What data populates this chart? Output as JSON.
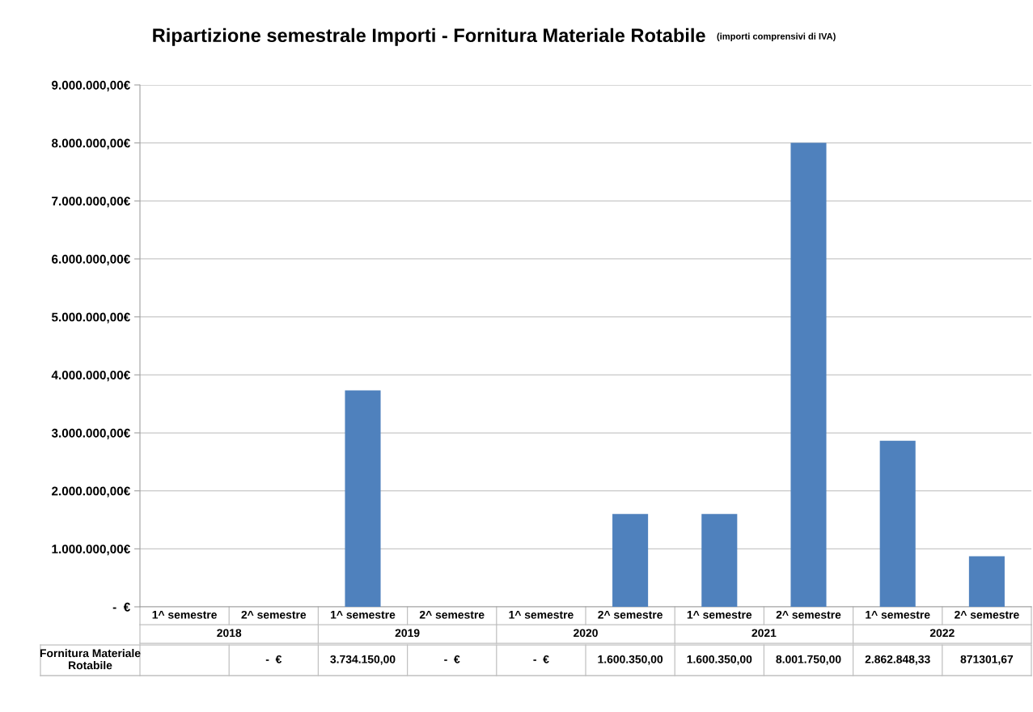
{
  "chart_data": {
    "type": "bar",
    "title": "Ripartizione semestrale Importi - Fornitura Materiale Rotabile",
    "subtitle": "(importi comprensivi di IVA)",
    "categories": [
      "1^ semestre",
      "2^ semestre",
      "1^ semestre",
      "2^ semestre",
      "1^ semestre",
      "2^ semestre",
      "1^ semestre",
      "2^ semestre",
      "1^ semestre",
      "2^ semestre"
    ],
    "annotations": [
      "2018",
      "2019",
      "2020",
      "2021",
      "2022"
    ],
    "series": [
      {
        "name": "Fornitura Materiale Rotabile",
        "color": "#4f81bd",
        "values": [
          null,
          0,
          3734150.0,
          0,
          0,
          1600350.0,
          1600350.0,
          8001750.0,
          2862848.33,
          871301.67
        ],
        "value_labels": [
          null,
          "-  €",
          "3.734.150,00",
          "-  €",
          "-  €",
          "1.600.350,00",
          "1.600.350,00",
          "8.001.750,00",
          "2.862.848,33",
          "871301,67"
        ]
      }
    ],
    "ylim": [
      0,
      9000000
    ],
    "yticks": [
      {
        "value": 0,
        "label": "-  €"
      },
      {
        "value": 1000000,
        "label": "1.000.000,00€"
      },
      {
        "value": 2000000,
        "label": "2.000.000,00€"
      },
      {
        "value": 3000000,
        "label": "3.000.000,00€"
      },
      {
        "value": 4000000,
        "label": "4.000.000,00€"
      },
      {
        "value": 5000000,
        "label": "5.000.000,00€"
      },
      {
        "value": 6000000,
        "label": "6.000.000,00€"
      },
      {
        "value": 7000000,
        "label": "7.000.000,00€"
      },
      {
        "value": 8000000,
        "label": "8.000.000,00€"
      },
      {
        "value": 9000000,
        "label": "9.000.000,00€"
      }
    ],
    "grid": "y"
  }
}
